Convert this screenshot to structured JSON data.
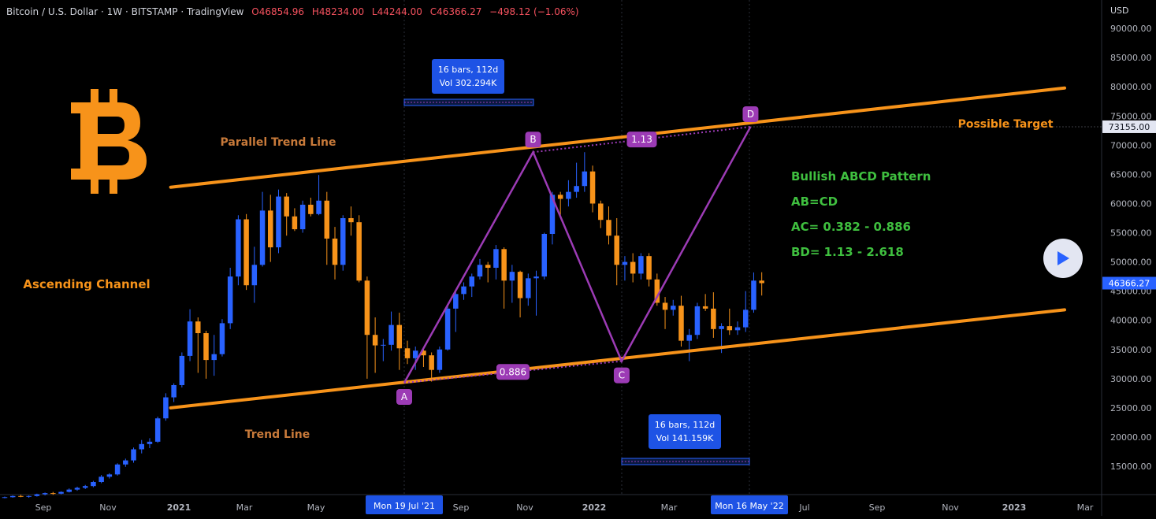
{
  "header": {
    "title": "Bitcoin / U.S. Dollar · 1W · BITSTAMP · TradingView",
    "open": "O46854.96",
    "high": "H48234.00",
    "low": "L44244.00",
    "close": "C46366.27",
    "change": "−498.12 (−1.06%)"
  },
  "colors": {
    "up": "#2962ff",
    "down": "#f7931a",
    "trend": "#f7931a",
    "pattern": "#9c3bb5",
    "green": "#3fbf3f",
    "label_blue": "#1e53e5"
  },
  "chart_data": {
    "type": "candlestick",
    "y_axis": {
      "currency": "USD",
      "ylim": [
        10000,
        93000
      ],
      "ticks": [
        "90000.00",
        "85000.00",
        "80000.00",
        "75000.00",
        "70000.00",
        "65000.00",
        "60000.00",
        "55000.00",
        "50000.00",
        "45000.00",
        "40000.00",
        "35000.00",
        "30000.00",
        "25000.00",
        "20000.00",
        "15000.00"
      ],
      "tick_values": [
        90000,
        85000,
        80000,
        75000,
        70000,
        65000,
        60000,
        55000,
        50000,
        45000,
        40000,
        35000,
        30000,
        25000,
        20000,
        15000
      ]
    },
    "x_axis": {
      "ticks": [
        "Sep",
        "Nov",
        "2021",
        "Mar",
        "May",
        "Jul",
        "Sep",
        "Nov",
        "2022",
        "Mar",
        "May",
        "Jul",
        "Sep",
        "Nov",
        "2023",
        "Mar"
      ],
      "highlight_labels": [
        "Mon 19 Jul '21",
        "Mon 16 May '22"
      ]
    },
    "price_labels": {
      "target": "73155.00",
      "last": "46366.27"
    },
    "candles": [
      [
        9600,
        9800,
        9500,
        9700
      ],
      [
        9700,
        10000,
        9600,
        9900
      ],
      [
        9900,
        10100,
        9700,
        9800
      ],
      [
        9800,
        10000,
        9600,
        9900
      ],
      [
        9900,
        10300,
        9800,
        10200
      ],
      [
        10200,
        10500,
        10000,
        10400
      ],
      [
        10400,
        10600,
        10100,
        10300
      ],
      [
        10300,
        10700,
        10200,
        10600
      ],
      [
        10600,
        11200,
        10500,
        11000
      ],
      [
        11000,
        11500,
        10800,
        11300
      ],
      [
        11300,
        11800,
        11100,
        11600
      ],
      [
        11600,
        12500,
        11400,
        12300
      ],
      [
        12300,
        13500,
        12100,
        13200
      ],
      [
        13200,
        13800,
        12900,
        13600
      ],
      [
        13600,
        15500,
        13400,
        15300
      ],
      [
        15300,
        16300,
        14900,
        16000
      ],
      [
        16000,
        18200,
        15600,
        17900
      ],
      [
        17900,
        19500,
        17200,
        18800
      ],
      [
        18800,
        19800,
        18100,
        19200
      ],
      [
        19200,
        23500,
        19000,
        23200
      ],
      [
        23200,
        27500,
        22800,
        26800
      ],
      [
        26800,
        29200,
        26000,
        28900
      ],
      [
        28900,
        34500,
        28500,
        33900
      ],
      [
        33900,
        41900,
        33000,
        39800
      ],
      [
        39800,
        40500,
        31000,
        37800
      ],
      [
        37800,
        38200,
        30000,
        33200
      ],
      [
        33200,
        37500,
        30500,
        34200
      ],
      [
        34200,
        40200,
        33800,
        39500
      ],
      [
        39500,
        49000,
        38500,
        47500
      ],
      [
        47500,
        58000,
        46000,
        57300
      ],
      [
        57300,
        58200,
        45200,
        46000
      ],
      [
        46000,
        52600,
        43000,
        49500
      ],
      [
        49500,
        62000,
        49200,
        58800
      ],
      [
        58800,
        61500,
        50000,
        52500
      ],
      [
        52500,
        62400,
        51500,
        61200
      ],
      [
        61200,
        61800,
        54500,
        57800
      ],
      [
        57800,
        59200,
        55300,
        55600
      ],
      [
        55600,
        60500,
        55000,
        59800
      ],
      [
        59800,
        61000,
        57800,
        58200
      ],
      [
        58200,
        64900,
        58000,
        60500
      ],
      [
        60500,
        62000,
        49500,
        54000
      ],
      [
        54000,
        56000,
        47000,
        49500
      ],
      [
        49500,
        58000,
        48500,
        57500
      ],
      [
        57500,
        59500,
        54500,
        56800
      ],
      [
        56800,
        58000,
        46500,
        46800
      ],
      [
        46800,
        47500,
        30000,
        37500
      ],
      [
        37500,
        40500,
        31000,
        35700
      ],
      [
        35700,
        36800,
        33000,
        35800
      ],
      [
        35800,
        41500,
        34800,
        39200
      ],
      [
        39200,
        41300,
        31500,
        35200
      ],
      [
        35200,
        36500,
        32500,
        33500
      ],
      [
        33500,
        35500,
        31500,
        34800
      ],
      [
        34800,
        35000,
        32000,
        34000
      ],
      [
        34000,
        34500,
        29500,
        31500
      ],
      [
        31500,
        35500,
        31000,
        35000
      ],
      [
        35000,
        42500,
        34800,
        42000
      ],
      [
        42000,
        45000,
        38000,
        44500
      ],
      [
        44500,
        46500,
        43500,
        45800
      ],
      [
        45800,
        48000,
        44000,
        47500
      ],
      [
        47500,
        50500,
        47000,
        49500
      ],
      [
        49500,
        50000,
        46500,
        49000
      ],
      [
        49000,
        52900,
        47000,
        52200
      ],
      [
        52200,
        52500,
        42000,
        46800
      ],
      [
        46800,
        49500,
        43000,
        48300
      ],
      [
        48300,
        48500,
        40500,
        43800
      ],
      [
        43800,
        48000,
        42500,
        47200
      ],
      [
        47200,
        48500,
        40800,
        47500
      ],
      [
        47500,
        55000,
        47000,
        54800
      ],
      [
        54800,
        62000,
        53000,
        61500
      ],
      [
        61500,
        62000,
        58000,
        60800
      ],
      [
        60800,
        64000,
        59500,
        62000
      ],
      [
        62000,
        67000,
        61000,
        63000
      ],
      [
        63000,
        68800,
        62000,
        65500
      ],
      [
        65500,
        66500,
        58500,
        60000
      ],
      [
        60000,
        60500,
        55800,
        57200
      ],
      [
        57200,
        59500,
        53000,
        54500
      ],
      [
        54500,
        57500,
        46000,
        49500
      ],
      [
        49500,
        51000,
        46800,
        50000
      ],
      [
        50000,
        51500,
        46500,
        48000
      ],
      [
        48000,
        51500,
        47000,
        51000
      ],
      [
        51000,
        51500,
        45800,
        47000
      ],
      [
        47000,
        48000,
        42500,
        43000
      ],
      [
        43000,
        44000,
        38500,
        41800
      ],
      [
        41800,
        43500,
        40800,
        42500
      ],
      [
        42500,
        44200,
        35500,
        36500
      ],
      [
        36500,
        38500,
        33000,
        37500
      ],
      [
        37500,
        43000,
        36800,
        42400
      ],
      [
        42400,
        44500,
        41600,
        42000
      ],
      [
        42000,
        44800,
        37000,
        38500
      ],
      [
        38500,
        39500,
        34400,
        39000
      ],
      [
        39000,
        42000,
        37500,
        38300
      ],
      [
        38300,
        39800,
        37500,
        38800
      ],
      [
        38800,
        45000,
        38000,
        41800
      ],
      [
        41800,
        48200,
        41300,
        46800
      ],
      [
        46800,
        48234,
        44244,
        46366
      ]
    ],
    "pattern": {
      "title": "Bullish ABCD Pattern",
      "points": [
        {
          "label": "A",
          "date": "2021-07-19",
          "price": 29300
        },
        {
          "label": "B",
          "date": "2021-11-08",
          "price": 68800
        },
        {
          "label": "C",
          "date": "2022-01-24",
          "price": 33000
        },
        {
          "label": "D",
          "date": "2022-05-16",
          "price": 73155
        }
      ],
      "ratios": [
        "0.886",
        "1.13"
      ],
      "rules": [
        "AB=CD",
        "AC= 0.382 - 0.886",
        "BD= 1.13 - 2.618"
      ]
    },
    "lines": {
      "parallel": {
        "name": "Parallel Trend Line",
        "from": [
          "2020-12-28",
          62800
        ],
        "to": [
          "2023-02-13",
          79800
        ]
      },
      "trend": {
        "name": "Trend Line",
        "from": [
          "2020-12-28",
          25000
        ],
        "to": [
          "2023-02-13",
          41800
        ]
      }
    },
    "bars_ranges": [
      {
        "line1": "16 bars, 112d",
        "line2": "Vol 302.294K"
      },
      {
        "line1": "16 bars, 112d",
        "line2": "Vol 141.159K"
      }
    ],
    "annotations": {
      "ascending_channel": "Ascending Channel",
      "possible_target": "Possible Target"
    }
  },
  "logo": {
    "glyph": "B"
  }
}
